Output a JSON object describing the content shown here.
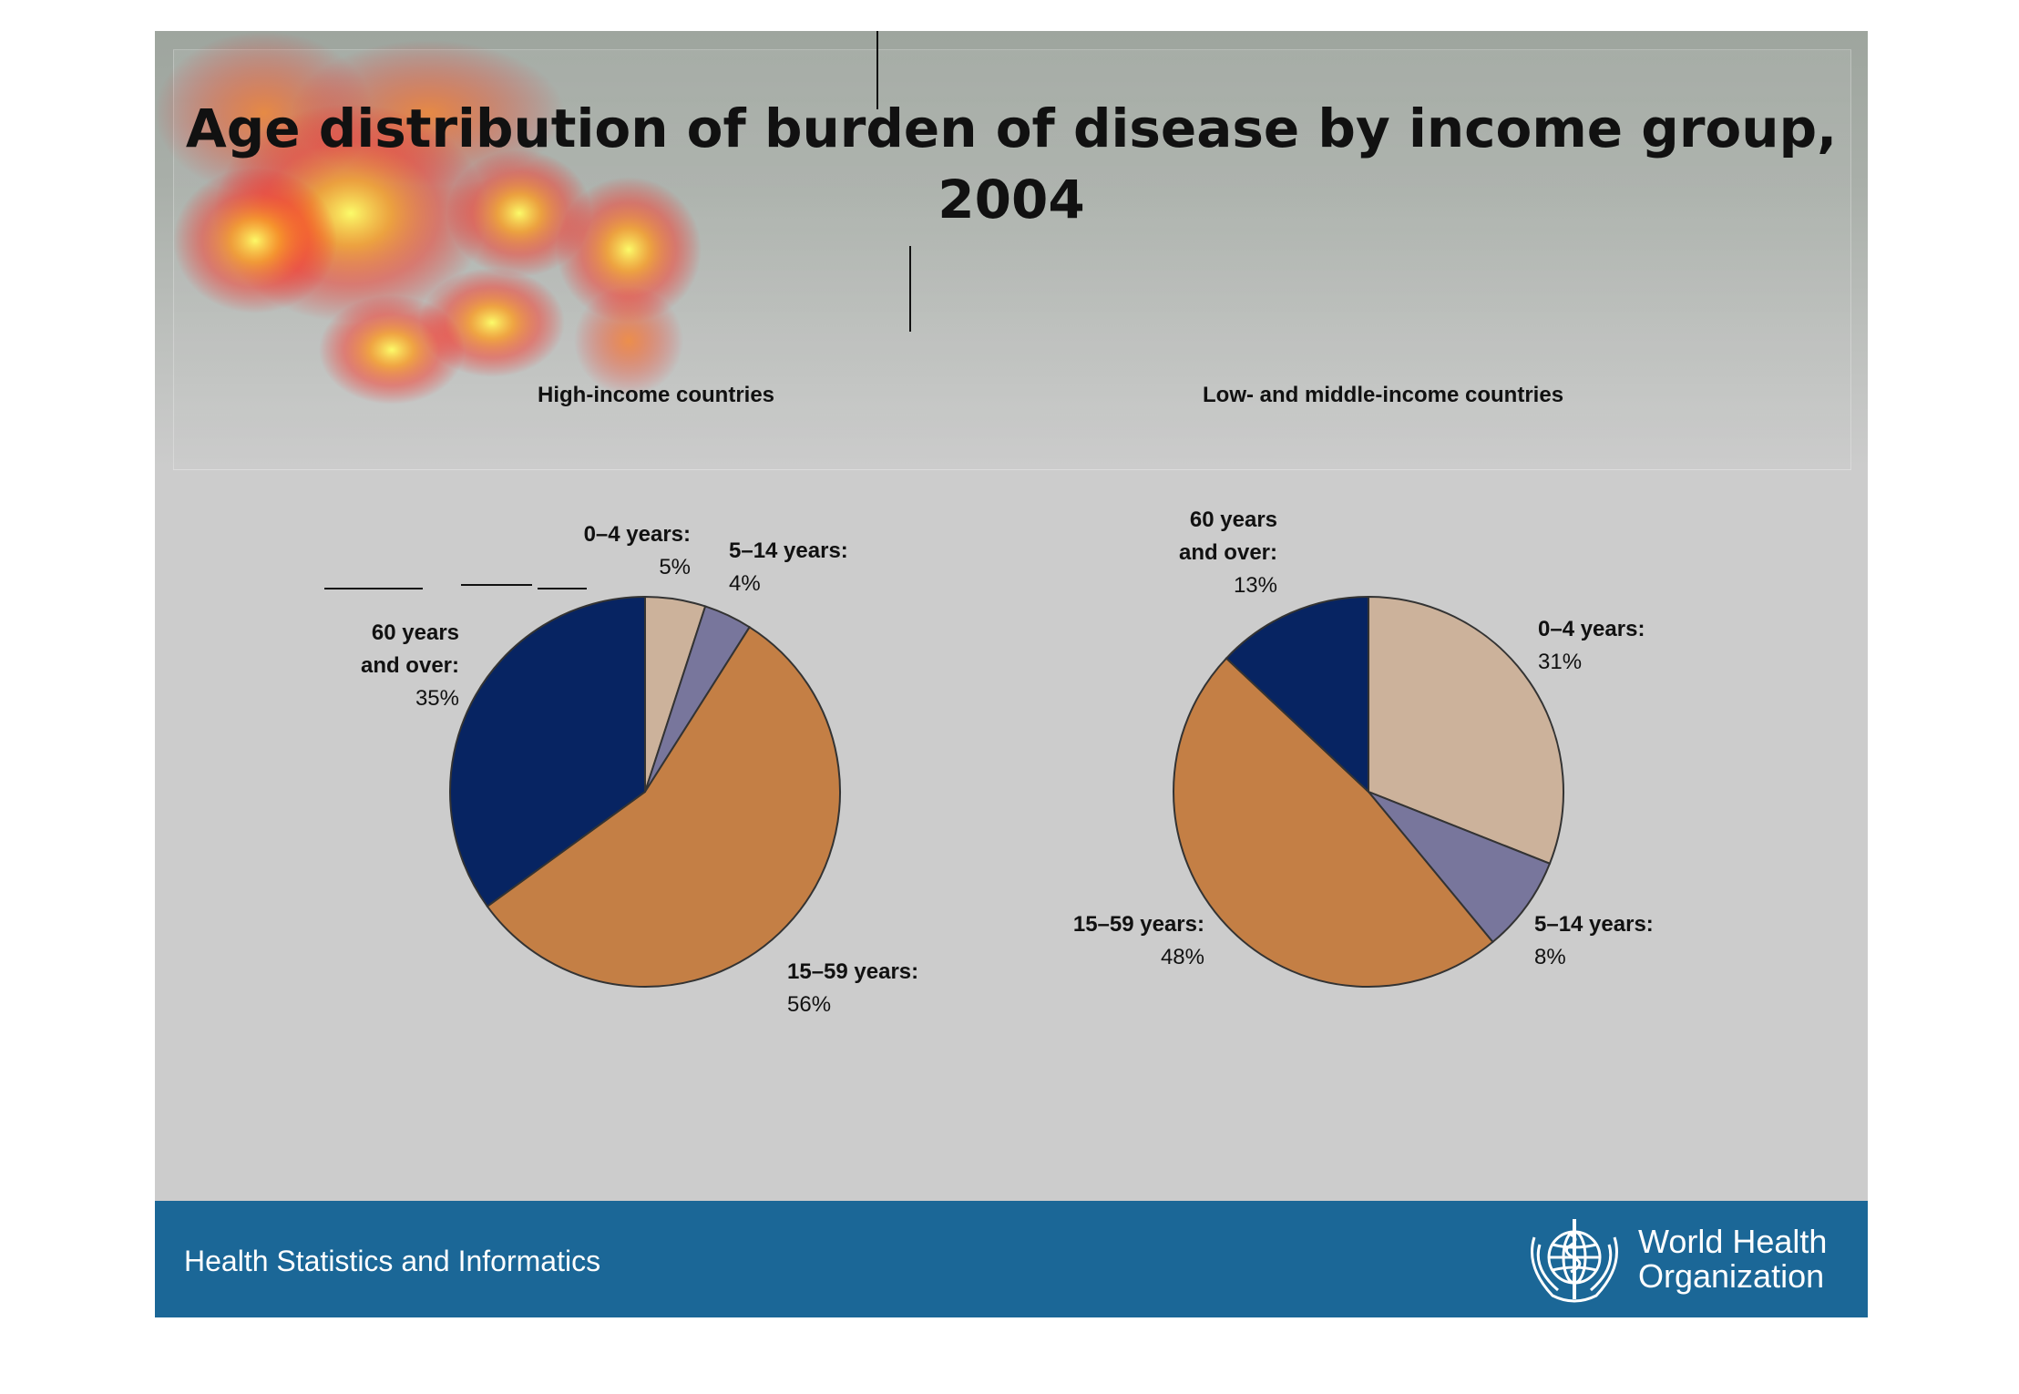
{
  "title": "Age distribution of burden of disease by income group, 2004",
  "footer": {
    "left_text": "Health Statistics and Informatics",
    "org_line1": "World Health",
    "org_line2": "Organization",
    "emblem_icon": "who-emblem-icon"
  },
  "colors": {
    "age_0_4": "#ccb29b",
    "age_5_14": "#78769c",
    "age_15_59": "#c47f45",
    "age_60_plus": "#072462",
    "footer_bg": "#1b6797",
    "slide_bg": "#cccccc"
  },
  "chart_data": [
    {
      "type": "pie",
      "title": "High-income countries",
      "labels": [
        "0–4 years:",
        "5–14 years:",
        "15–59 years:",
        "60 years and over:"
      ],
      "values": [
        5,
        4,
        56,
        35
      ],
      "value_labels": [
        "5%",
        "4%",
        "56%",
        "35%"
      ]
    },
    {
      "type": "pie",
      "title": "Low- and middle-income countries",
      "labels": [
        "0–4 years:",
        "5–14 years:",
        "15–59 years:",
        "60 years and over:"
      ],
      "values": [
        31,
        8,
        48,
        13
      ],
      "value_labels": [
        "31%",
        "8%",
        "48%",
        "13%"
      ]
    }
  ]
}
